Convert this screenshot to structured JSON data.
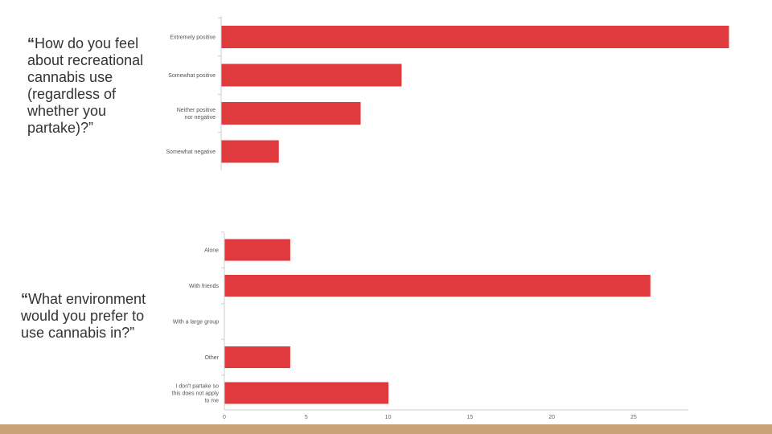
{
  "questions": {
    "q1_open": "“",
    "q1_text": "How do you feel about recreational cannabis use (regardless of whether you partake)?”",
    "q2_open": "“",
    "q2_text": "What environment would you prefer to use cannabis in?”"
  },
  "colors": {
    "bar": "#e03a3e",
    "band": "#c9a27a",
    "axis": "#cccccc"
  },
  "chart_data": [
    {
      "type": "bar",
      "orientation": "horizontal",
      "categories": [
        [
          "Extremely positive"
        ],
        [
          "Somewhat positive"
        ],
        [
          "Neither positive",
          "nor negative"
        ],
        [
          "Somewhat negative"
        ]
      ],
      "values": [
        31,
        11,
        8.5,
        3.5
      ],
      "xlim": [
        0,
        31
      ],
      "tick_labels_shown": false
    },
    {
      "type": "bar",
      "orientation": "horizontal",
      "categories": [
        [
          "Alone"
        ],
        [
          "With friends"
        ],
        [
          "With a large group"
        ],
        [
          "Other"
        ],
        [
          "I don't partake so",
          "this does not apply",
          "to me"
        ]
      ],
      "values": [
        4,
        26,
        0,
        4,
        10
      ],
      "xlim": [
        0,
        28
      ],
      "ticks": [
        0,
        5,
        10,
        15,
        20,
        25
      ]
    }
  ]
}
